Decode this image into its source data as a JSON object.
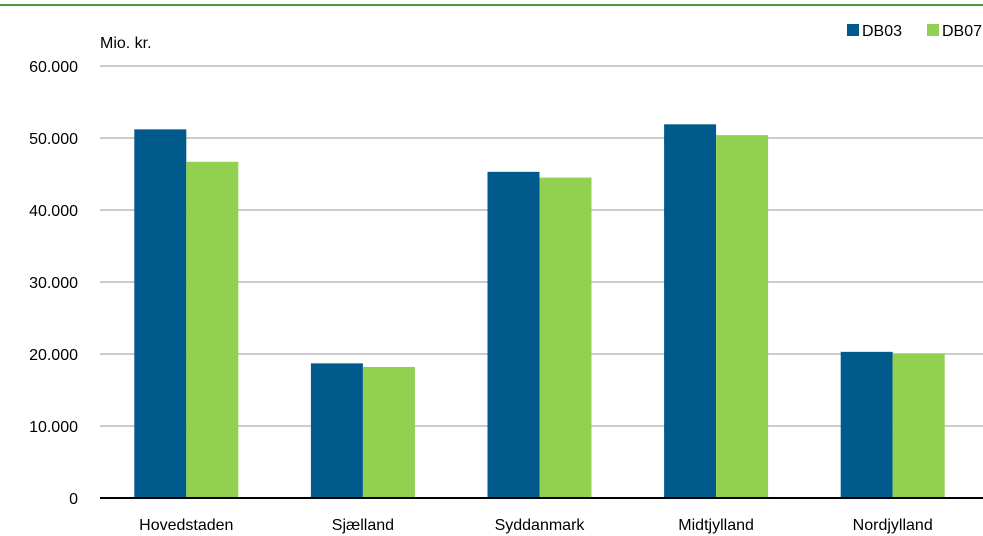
{
  "chart_data": {
    "type": "bar",
    "ylabel": "Mio. kr.",
    "ylim": [
      0,
      60000
    ],
    "yticks": [
      0,
      10000,
      20000,
      30000,
      40000,
      50000,
      60000
    ],
    "ytick_labels": [
      "0",
      "10.000",
      "20.000",
      "30.000",
      "40.000",
      "50.000",
      "60.000"
    ],
    "categories": [
      "Hovedstaden",
      "Sjælland",
      "Syddanmark",
      "Midtjylland",
      "Nordjylland"
    ],
    "series": [
      {
        "name": "DB03",
        "color": "#005a8c",
        "values": [
          51200,
          18700,
          45300,
          51900,
          20300
        ]
      },
      {
        "name": "DB07",
        "color": "#92d050",
        "values": [
          46700,
          18200,
          44500,
          50400,
          20100
        ]
      }
    ],
    "grid": true,
    "legend_position": "top-right",
    "accent_line_color": "#4a9a3a"
  }
}
